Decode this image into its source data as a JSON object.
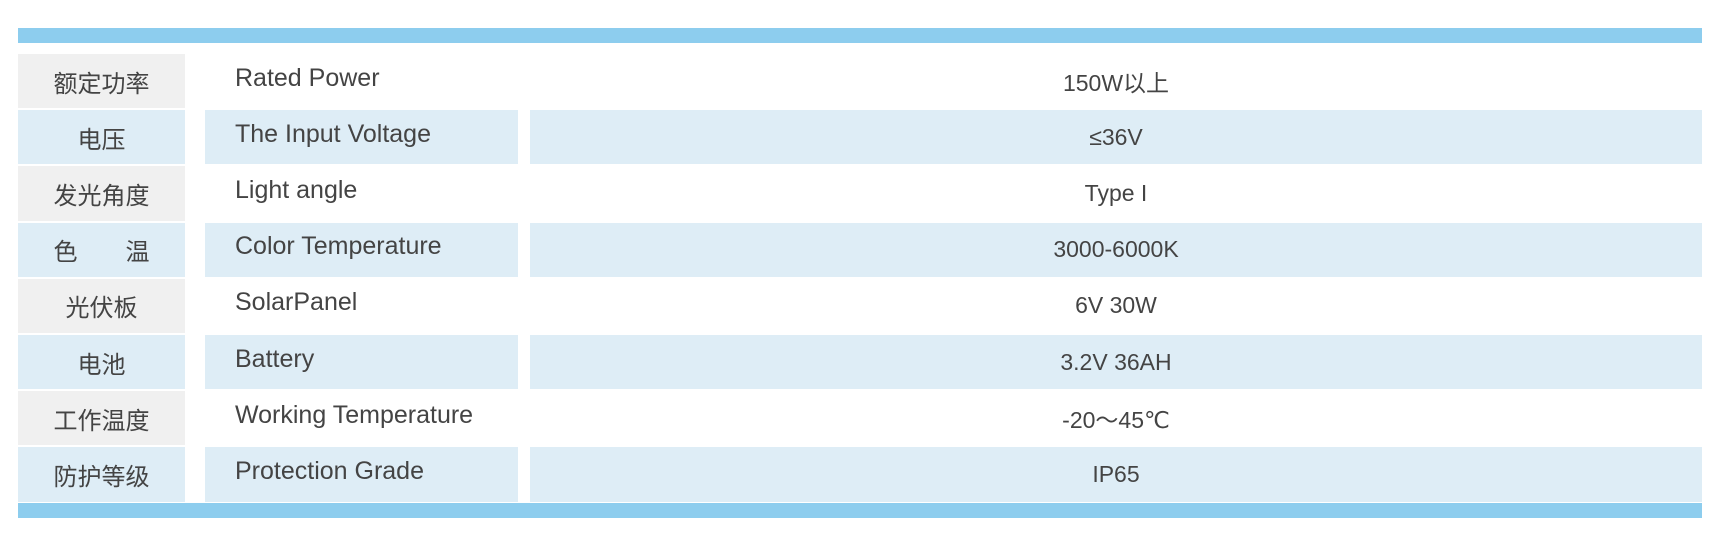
{
  "table": {
    "rows": [
      [
        "额定功率",
        "Rated Power",
        "150W以上"
      ],
      [
        "电压",
        "The Input Voltage",
        "≤36V"
      ],
      [
        "发光角度",
        "Light angle",
        "Type I"
      ],
      [
        "色　　温",
        "Color Temperature",
        "3000-6000K"
      ],
      [
        "光伏板",
        "SolarPanel",
        "6V 30W"
      ],
      [
        "电池",
        "Battery",
        "3.2V 36AH"
      ],
      [
        "工作温度",
        "Working Temperature",
        "-20～45℃"
      ],
      [
        "防护等级",
        "Protection Grade",
        "IP65"
      ]
    ]
  }
}
